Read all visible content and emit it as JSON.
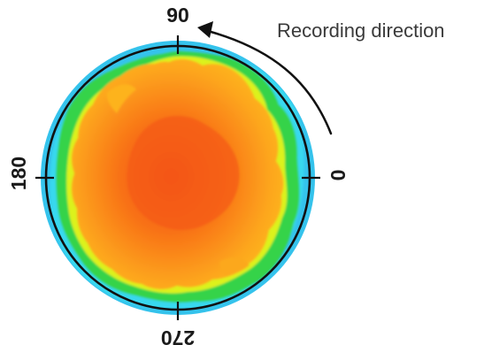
{
  "figure": {
    "annotation": "Recording direction",
    "angle_labels": {
      "top": "90",
      "left": "180",
      "right": "0",
      "bottom": "270"
    },
    "colors": {
      "background_ring": "#35c3ec",
      "outer_band": "#36d7ee",
      "green_band": "#33d34f",
      "yellow_band": "#dff01e",
      "orange_field": "#fda51a",
      "hot_center": "#f46116",
      "circle_line": "#111111",
      "arrow": "#111111"
    }
  }
}
